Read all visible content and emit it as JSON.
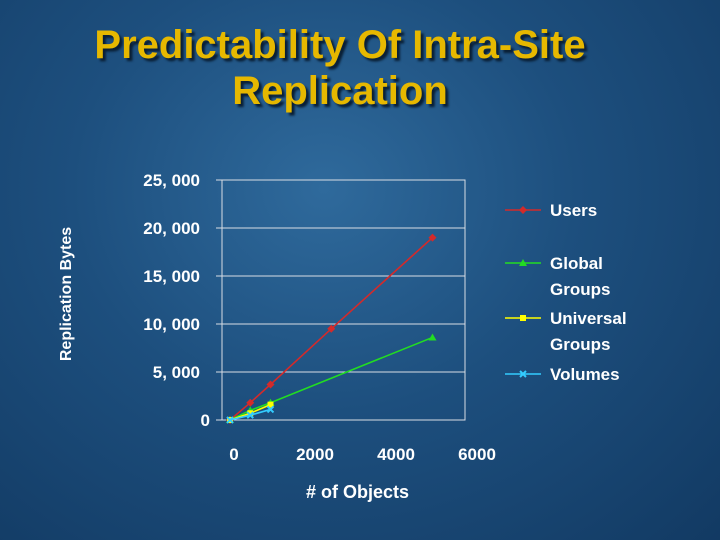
{
  "slide": {
    "title_line1": "Predictability Of Intra-Site",
    "title_line2": "Replication"
  },
  "chart_data": {
    "type": "line",
    "title": "",
    "xlabel": "# of Objects",
    "ylabel": "Replication Bytes",
    "xlim": [
      0,
      6000
    ],
    "ylim": [
      0,
      25000000
    ],
    "x_ticks": [
      "0",
      "2000",
      "4000",
      "6000"
    ],
    "y_ticks": [
      "0",
      "5, 000",
      "10, 000",
      "15, 000",
      "20, 000",
      "25, 000"
    ],
    "legend_position": "right",
    "series": [
      {
        "name": "Users",
        "color": "#d42a2a",
        "marker": "diamond",
        "points": [
          [
            0,
            0
          ],
          [
            500,
            1800000
          ],
          [
            1000,
            3700000
          ],
          [
            2500,
            9500000
          ],
          [
            5000,
            19000000
          ]
        ]
      },
      {
        "name": "Global Groups",
        "color": "#22dd22",
        "marker": "triangle",
        "points": [
          [
            0,
            0
          ],
          [
            500,
            1000000
          ],
          [
            1000,
            1800000
          ],
          [
            5000,
            8600000
          ]
        ]
      },
      {
        "name": "Universal Groups",
        "color": "#ffff00",
        "marker": "square",
        "points": [
          [
            0,
            0
          ],
          [
            500,
            700000
          ],
          [
            1000,
            1600000
          ]
        ]
      },
      {
        "name": "Volumes",
        "color": "#33ccff",
        "marker": "x",
        "points": [
          [
            0,
            0
          ],
          [
            500,
            500000
          ],
          [
            1000,
            1100000
          ]
        ]
      }
    ]
  }
}
